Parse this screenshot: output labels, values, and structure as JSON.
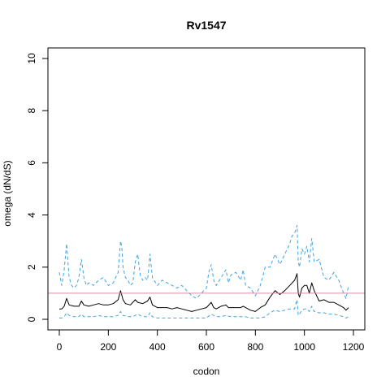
{
  "chart_data": {
    "type": "line",
    "title": "Rv1547",
    "xlabel": "codon",
    "ylabel": "omega (dN/dS)",
    "xlim": [
      0,
      1200
    ],
    "ylim": [
      0,
      10
    ],
    "x_ticks": [
      0,
      200,
      400,
      600,
      800,
      1000,
      1200
    ],
    "y_ticks": [
      0,
      2,
      4,
      6,
      8,
      10
    ],
    "grid": false,
    "colors": {
      "estimate": "#000000",
      "bounds": "#3fa4e0",
      "reference": "#d98aa3"
    },
    "reference_line": {
      "y": 1
    },
    "series": [
      {
        "role": "estimate",
        "style": "solid",
        "x": [
          0,
          10,
          20,
          30,
          40,
          60,
          80,
          90,
          100,
          120,
          140,
          160,
          180,
          200,
          220,
          240,
          250,
          260,
          270,
          290,
          310,
          320,
          340,
          360,
          370,
          380,
          400,
          420,
          440,
          460,
          480,
          500,
          520,
          540,
          560,
          580,
          600,
          620,
          630,
          640,
          660,
          680,
          690,
          700,
          720,
          740,
          750,
          760,
          780,
          800,
          820,
          840,
          860,
          880,
          900,
          920,
          940,
          960,
          970,
          975,
          980,
          990,
          1000,
          1010,
          1020,
          1030,
          1040,
          1060,
          1080,
          1100,
          1120,
          1140,
          1160,
          1170,
          1180
        ],
        "y": [
          0.4,
          0.4,
          0.5,
          0.8,
          0.55,
          0.5,
          0.5,
          0.7,
          0.55,
          0.5,
          0.55,
          0.6,
          0.55,
          0.55,
          0.6,
          0.75,
          1.1,
          0.75,
          0.6,
          0.55,
          0.75,
          0.65,
          0.6,
          0.7,
          0.85,
          0.55,
          0.45,
          0.45,
          0.45,
          0.4,
          0.45,
          0.4,
          0.35,
          0.3,
          0.35,
          0.4,
          0.45,
          0.65,
          0.45,
          0.4,
          0.5,
          0.55,
          0.45,
          0.45,
          0.45,
          0.45,
          0.5,
          0.45,
          0.35,
          0.3,
          0.45,
          0.55,
          0.85,
          1.1,
          0.95,
          1.1,
          1.3,
          1.5,
          1.75,
          1.0,
          0.85,
          1.2,
          1.3,
          1.3,
          1.0,
          1.4,
          1.1,
          0.7,
          0.75,
          0.65,
          0.65,
          0.55,
          0.45,
          0.35,
          0.45
        ]
      },
      {
        "role": "upper bound",
        "style": "dashed",
        "x": [
          0,
          10,
          20,
          30,
          40,
          50,
          60,
          70,
          80,
          90,
          100,
          110,
          120,
          140,
          160,
          180,
          200,
          220,
          240,
          250,
          255,
          260,
          270,
          280,
          290,
          300,
          310,
          320,
          330,
          340,
          350,
          360,
          370,
          380,
          400,
          420,
          440,
          460,
          480,
          500,
          520,
          540,
          560,
          580,
          600,
          610,
          620,
          630,
          640,
          660,
          680,
          690,
          700,
          720,
          740,
          750,
          760,
          780,
          800,
          820,
          840,
          860,
          880,
          900,
          920,
          940,
          950,
          960,
          970,
          975,
          980,
          990,
          1000,
          1010,
          1020,
          1030,
          1040,
          1060,
          1080,
          1100,
          1120,
          1140,
          1160,
          1170,
          1180
        ],
        "y": [
          1.8,
          1.3,
          1.9,
          2.9,
          1.6,
          1.3,
          1.2,
          1.3,
          1.6,
          2.3,
          1.6,
          1.3,
          1.4,
          1.3,
          1.5,
          1.6,
          1.3,
          1.4,
          1.8,
          3.0,
          2.8,
          2.0,
          1.6,
          1.5,
          1.3,
          1.4,
          2.2,
          2.5,
          1.7,
          1.5,
          1.6,
          1.5,
          2.5,
          1.6,
          1.3,
          1.5,
          1.4,
          1.3,
          1.2,
          1.3,
          1.1,
          0.9,
          0.8,
          1.0,
          1.2,
          1.8,
          2.1,
          1.5,
          1.3,
          1.6,
          1.9,
          1.4,
          1.7,
          1.8,
          1.5,
          1.9,
          1.3,
          1.2,
          0.9,
          1.3,
          2.0,
          2.0,
          2.5,
          2.1,
          2.5,
          2.9,
          3.2,
          3.3,
          3.6,
          2.2,
          2.0,
          2.7,
          2.5,
          2.8,
          2.2,
          3.1,
          2.2,
          2.3,
          1.6,
          1.5,
          1.8,
          1.5,
          1.0,
          0.8,
          1.3
        ]
      },
      {
        "role": "lower bound",
        "style": "dashed",
        "x": [
          0,
          10,
          20,
          30,
          40,
          60,
          80,
          90,
          100,
          120,
          140,
          160,
          180,
          200,
          220,
          240,
          250,
          260,
          280,
          300,
          320,
          340,
          360,
          370,
          380,
          400,
          420,
          440,
          460,
          480,
          500,
          520,
          540,
          560,
          580,
          600,
          620,
          640,
          660,
          680,
          700,
          720,
          740,
          760,
          780,
          800,
          820,
          840,
          860,
          880,
          900,
          920,
          940,
          960,
          970,
          975,
          980,
          990,
          1000,
          1010,
          1020,
          1030,
          1040,
          1060,
          1080,
          1100,
          1120,
          1140,
          1160,
          1170,
          1180
        ],
        "y": [
          0.05,
          0.05,
          0.1,
          0.25,
          0.15,
          0.1,
          0.1,
          0.2,
          0.1,
          0.1,
          0.1,
          0.15,
          0.1,
          0.1,
          0.1,
          0.15,
          0.3,
          0.15,
          0.1,
          0.1,
          0.2,
          0.1,
          0.1,
          0.25,
          0.1,
          0.05,
          0.05,
          0.05,
          0.05,
          0.05,
          0.05,
          0.05,
          0.05,
          0.05,
          0.05,
          0.05,
          0.2,
          0.1,
          0.1,
          0.15,
          0.1,
          0.1,
          0.1,
          0.1,
          0.05,
          0.05,
          0.05,
          0.1,
          0.25,
          0.35,
          0.3,
          0.35,
          0.4,
          0.4,
          0.75,
          0.15,
          0.2,
          0.35,
          0.4,
          0.4,
          0.3,
          0.5,
          0.3,
          0.25,
          0.25,
          0.2,
          0.2,
          0.15,
          0.1,
          0.05,
          0.1
        ]
      }
    ]
  }
}
